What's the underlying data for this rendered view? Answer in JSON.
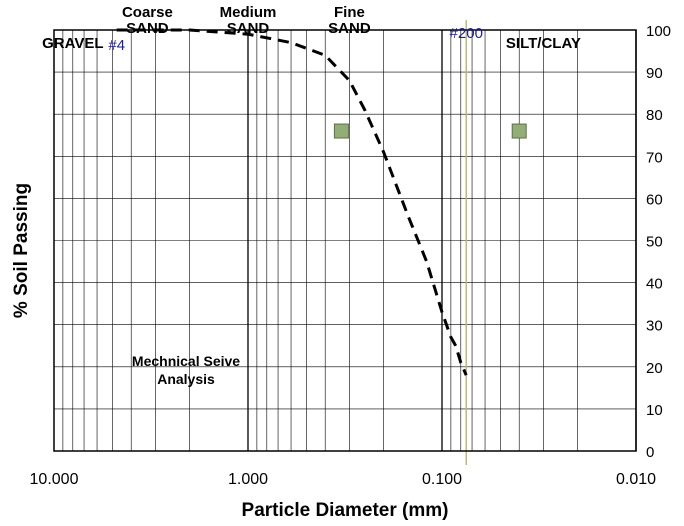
{
  "chart_data": {
    "type": "line",
    "title": "",
    "xlabel": "Particle Diameter (mm)",
    "ylabel": "% Soil Passing",
    "x_scale": "log",
    "x_reversed": true,
    "xlim": [
      10,
      0.01
    ],
    "ylim": [
      0,
      100
    ],
    "x_tick_labels": [
      {
        "value": 10,
        "label": "10.000"
      },
      {
        "value": 1,
        "label": "1.000"
      },
      {
        "value": 0.1,
        "label": "0.100"
      },
      {
        "value": 0.01,
        "label": "0.010"
      }
    ],
    "y_ticks": [
      0,
      10,
      20,
      30,
      40,
      50,
      60,
      70,
      80,
      90,
      100
    ],
    "grid": true,
    "annotation": [
      "Mechnical Seive",
      "Analysis"
    ],
    "soil_zones": [
      {
        "lines": [
          "GRAVEL"
        ],
        "x": 8.0
      },
      {
        "lines": [
          "Coarse",
          "SAND"
        ],
        "x": 3.3
      },
      {
        "lines": [
          "Medium",
          "SAND"
        ],
        "x": 1.0
      },
      {
        "lines": [
          "Fine",
          "SAND"
        ],
        "x": 0.3
      },
      {
        "lines": [
          "SILT/CLAY"
        ],
        "x": 0.03
      }
    ],
    "sieve_markers": [
      {
        "label": "#4",
        "x": 4.75,
        "color": "#1f1f8f",
        "show_line": false
      },
      {
        "label": "#200",
        "x": 0.075,
        "color": "#1f1f8f",
        "show_line": true,
        "line_color": "#b8b86a"
      }
    ],
    "series": [
      {
        "style": "dashed",
        "color": "#000000",
        "x": [
          4.75,
          2.0,
          1.0,
          0.6,
          0.4,
          0.3,
          0.25,
          0.2,
          0.15,
          0.12,
          0.1,
          0.09,
          0.085,
          0.08,
          0.075
        ],
        "y": [
          100,
          100,
          99,
          97,
          94,
          88,
          81,
          71,
          56,
          45,
          33,
          27,
          25,
          21,
          18
        ]
      },
      {
        "style": "markers",
        "marker": "square",
        "color": "#93ad77",
        "edge_color": "#5f6f4c",
        "x": [
          0.33,
          0.04
        ],
        "y": [
          76,
          76
        ]
      }
    ]
  }
}
